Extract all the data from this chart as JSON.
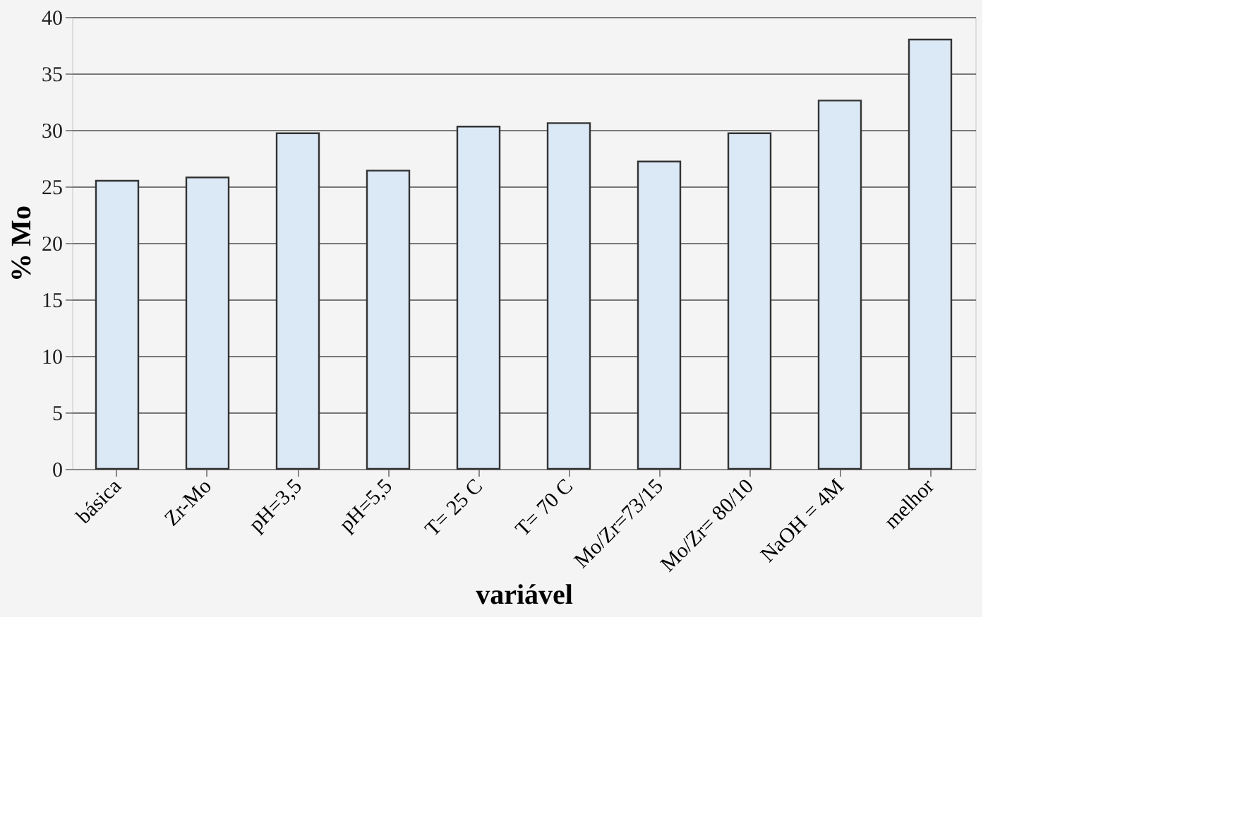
{
  "chart_data": {
    "type": "bar",
    "xlabel": "variável",
    "ylabel": "% Mo",
    "categories": [
      "básica",
      "Zr-Mo",
      "pH=3,5",
      "pH=5,5",
      "T= 25 C",
      "T= 70 C",
      "Mo/Zr=73/15",
      "Mo/Zr= 80/10",
      "NaOH = 4M",
      "melhor"
    ],
    "values": [
      25.5,
      25.8,
      29.7,
      26.4,
      30.3,
      30.6,
      27.2,
      29.7,
      32.6,
      38.0
    ],
    "color": "#dbe8f5",
    "ylim": [
      0,
      40
    ],
    "yticks": [
      0,
      5,
      10,
      15,
      20,
      25,
      30,
      35,
      40
    ],
    "grid": "y"
  }
}
